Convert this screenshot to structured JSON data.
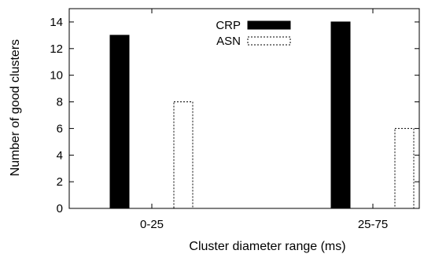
{
  "chart_data": {
    "type": "bar",
    "categories": [
      "0-25",
      "25-75"
    ],
    "series": [
      {
        "name": "CRP",
        "values": [
          13,
          14
        ],
        "fill": "#000000",
        "stroke": "#000000",
        "dashed": false
      },
      {
        "name": "ASN",
        "values": [
          8,
          6
        ],
        "fill": "#ffffff",
        "stroke": "#000000",
        "dashed": true
      }
    ],
    "xlabel": "Cluster diameter range (ms)",
    "ylabel": "Number of good clusters",
    "ylim": [
      0,
      15
    ],
    "yticks": [
      0,
      2,
      4,
      6,
      8,
      10,
      12,
      14
    ],
    "grid": false,
    "legend": {
      "position": "top-center"
    }
  }
}
